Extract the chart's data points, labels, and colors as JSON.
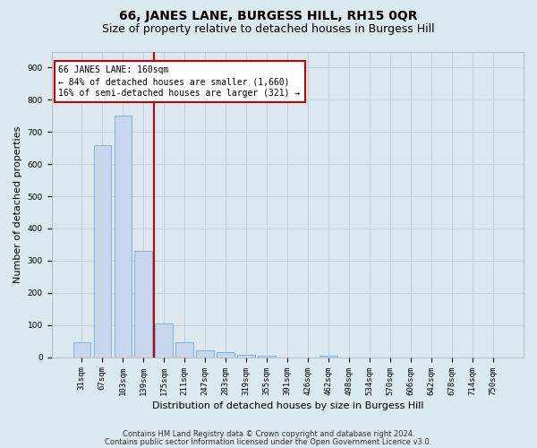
{
  "title": "66, JANES LANE, BURGESS HILL, RH15 0QR",
  "subtitle": "Size of property relative to detached houses in Burgess Hill",
  "xlabel": "Distribution of detached houses by size in Burgess Hill",
  "ylabel": "Number of detached properties",
  "categories": [
    "31sqm",
    "67sqm",
    "103sqm",
    "139sqm",
    "175sqm",
    "211sqm",
    "247sqm",
    "283sqm",
    "319sqm",
    "355sqm",
    "391sqm",
    "426sqm",
    "462sqm",
    "498sqm",
    "534sqm",
    "570sqm",
    "606sqm",
    "642sqm",
    "678sqm",
    "714sqm",
    "750sqm"
  ],
  "values": [
    47,
    660,
    750,
    330,
    105,
    47,
    22,
    15,
    8,
    5,
    0,
    0,
    5,
    0,
    0,
    0,
    0,
    0,
    0,
    0,
    0
  ],
  "bar_color": "#c8d8ec",
  "bar_edge_color": "#7aaad0",
  "vline_x": 3.5,
  "vline_color": "#cc0000",
  "annotation_line1": "66 JANES LANE: 160sqm",
  "annotation_line2": "← 84% of detached houses are smaller (1,660)",
  "annotation_line3": "16% of semi-detached houses are larger (321) →",
  "annotation_box_facecolor": "#ffffff",
  "annotation_box_edgecolor": "#cc0000",
  "ylim": [
    0,
    950
  ],
  "yticks": [
    0,
    100,
    200,
    300,
    400,
    500,
    600,
    700,
    800,
    900
  ],
  "grid_color": "#c0ccd8",
  "bg_color": "#dce8f0",
  "plot_bg_color": "#dce8f0",
  "footnote1": "Contains HM Land Registry data © Crown copyright and database right 2024.",
  "footnote2": "Contains public sector information licensed under the Open Government Licence v3.0.",
  "title_fontsize": 10,
  "subtitle_fontsize": 9,
  "tick_fontsize": 6.5,
  "ylabel_fontsize": 8,
  "xlabel_fontsize": 8,
  "footnote_fontsize": 6,
  "annot_fontsize": 7
}
